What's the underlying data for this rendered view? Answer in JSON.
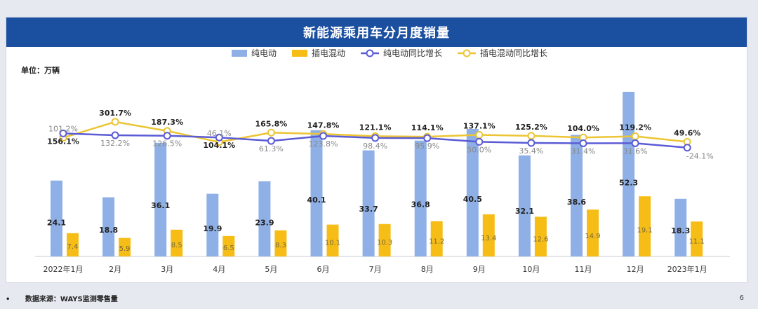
{
  "title": "新能源乘用车分月度销量",
  "unit_label": "单位：万辆",
  "footer": {
    "bullet": "•",
    "source": "数据来源：WAYS监测零售量"
  },
  "page_number": "6",
  "colors": {
    "bev": "#8fb0e6",
    "phev": "#f6bd16",
    "bev_line": "#5b5bd6",
    "phev_line": "#ecc534",
    "title_bg": "#1b4fa0"
  },
  "chart_data": {
    "type": "bar",
    "title": "新能源乘用车分月度销量",
    "categories": [
      "2022年1月",
      "2月",
      "3月",
      "4月",
      "5月",
      "6月",
      "7月",
      "8月",
      "9月",
      "10月",
      "11月",
      "12月",
      "2023年1月"
    ],
    "series": [
      {
        "name": "纯电动",
        "type": "bar",
        "values": [
          24.1,
          18.8,
          36.1,
          19.9,
          23.9,
          40.1,
          33.7,
          36.8,
          40.5,
          32.1,
          38.6,
          52.3,
          18.3
        ]
      },
      {
        "name": "插电混动",
        "type": "bar",
        "values": [
          7.4,
          5.9,
          8.5,
          6.5,
          8.3,
          10.1,
          10.3,
          11.2,
          13.4,
          12.6,
          14.9,
          19.1,
          11.1
        ]
      },
      {
        "name": "纯电动同比增长",
        "type": "line",
        "values": [
          156.1,
          132.2,
          126.5,
          104.1,
          61.3,
          123.8,
          98.4,
          95.9,
          50.0,
          35.4,
          31.4,
          31.6,
          -24.1
        ],
        "labels": [
          "156.1%",
          "132.2%",
          "126.5%",
          "104.1%",
          "61.3%",
          "123.8%",
          "98.4%",
          "95.9%",
          "50.0%",
          "35.4%",
          "31.4%",
          "31.6%",
          "-24.1%"
        ]
      },
      {
        "name": "插电混动同比增长",
        "type": "line",
        "values": [
          101.2,
          301.7,
          187.3,
          46.1,
          165.8,
          147.8,
          121.1,
          114.1,
          137.1,
          125.2,
          104.0,
          119.2,
          49.6
        ],
        "labels": [
          "101.2%",
          "301.7%",
          "187.3%",
          "46.1%",
          "165.8%",
          "147.8%",
          "121.1%",
          "114.1%",
          "137.1%",
          "125.2%",
          "104.0%",
          "119.2%",
          "49.6%"
        ]
      }
    ],
    "legend_position": "top-center"
  }
}
